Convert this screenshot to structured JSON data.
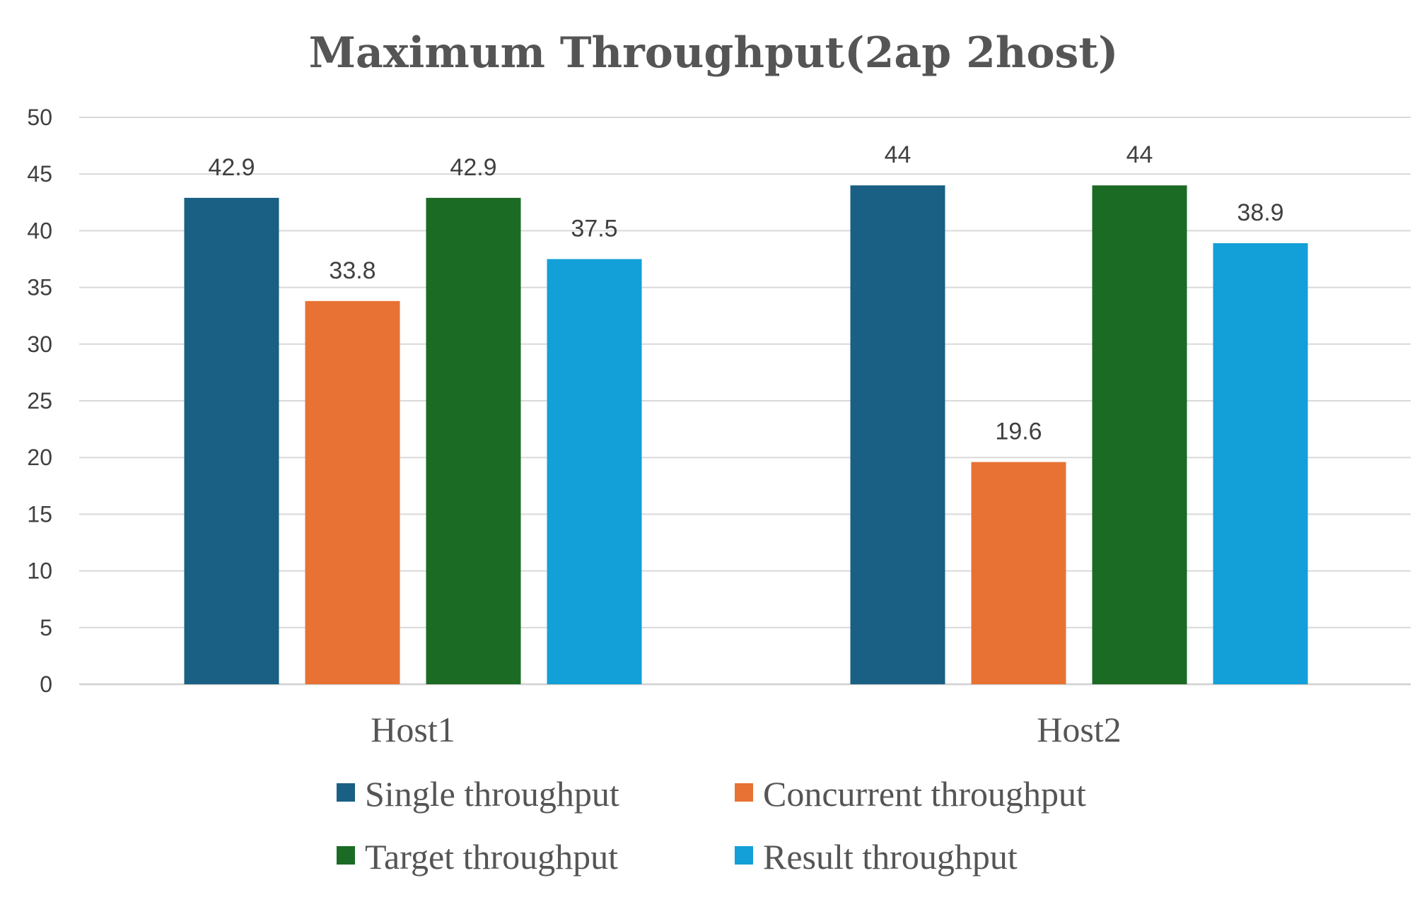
{
  "chart_data": {
    "type": "bar",
    "title": "Maximum Throughput(2ap 2host)",
    "xlabel": "",
    "ylabel": "",
    "categories": [
      "Host1",
      "Host2"
    ],
    "series": [
      {
        "name": "Single throughput",
        "color": "#1a5f84",
        "values": [
          42.9,
          44
        ]
      },
      {
        "name": "Concurrent throughput",
        "color": "#e87234",
        "values": [
          33.8,
          19.6
        ]
      },
      {
        "name": "Target throughput",
        "color": "#1b6b25",
        "values": [
          42.9,
          44
        ]
      },
      {
        "name": "Result throughput",
        "color": "#139fd7",
        "values": [
          37.5,
          38.9
        ]
      }
    ],
    "ylim": [
      0,
      50
    ],
    "yticks": [
      0,
      5,
      10,
      15,
      20,
      25,
      30,
      35,
      40,
      45,
      50
    ],
    "grid": true,
    "legend_position": "bottom"
  }
}
